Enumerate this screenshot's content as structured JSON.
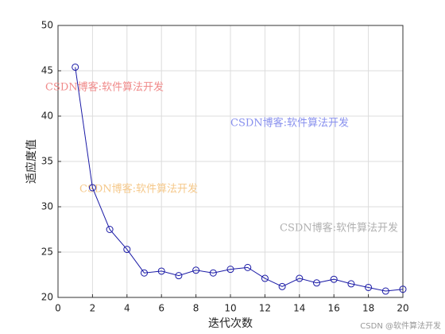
{
  "chart_data": {
    "type": "line",
    "x": [
      1,
      2,
      3,
      4,
      5,
      6,
      7,
      8,
      9,
      10,
      11,
      12,
      13,
      14,
      15,
      16,
      17,
      18,
      19,
      20
    ],
    "series": [
      {
        "color": "#1a1aa6",
        "values": [
          45.4,
          32.1,
          27.5,
          25.3,
          22.7,
          22.9,
          22.4,
          23.0,
          22.7,
          23.1,
          23.3,
          22.1,
          21.2,
          22.1,
          21.6,
          22.0,
          21.5,
          21.1,
          20.7,
          20.9
        ]
      }
    ],
    "xlabel": "迭代次数",
    "ylabel": "适应度值",
    "xlim": [
      0,
      20
    ],
    "xticks": [
      0,
      2,
      4,
      6,
      8,
      10,
      12,
      14,
      16,
      18,
      20
    ],
    "ylim": [
      20,
      50
    ],
    "yticks": [
      20,
      25,
      30,
      35,
      40,
      45,
      50
    ],
    "grid": true,
    "marker": "circle",
    "annotations": [
      {
        "text": "CSDN博客:软件算法开发",
        "color": "#f08a8a"
      },
      {
        "text": "CSDN博客:软件算法开发",
        "color": "#8890ee"
      },
      {
        "text": "CSDN博客:软件算法开发",
        "color": "#f5c88a"
      },
      {
        "text": "CSDN博客:软件算法开发",
        "color": "#b0b0b0"
      }
    ],
    "credit": "CSDN @软件算法开发"
  }
}
